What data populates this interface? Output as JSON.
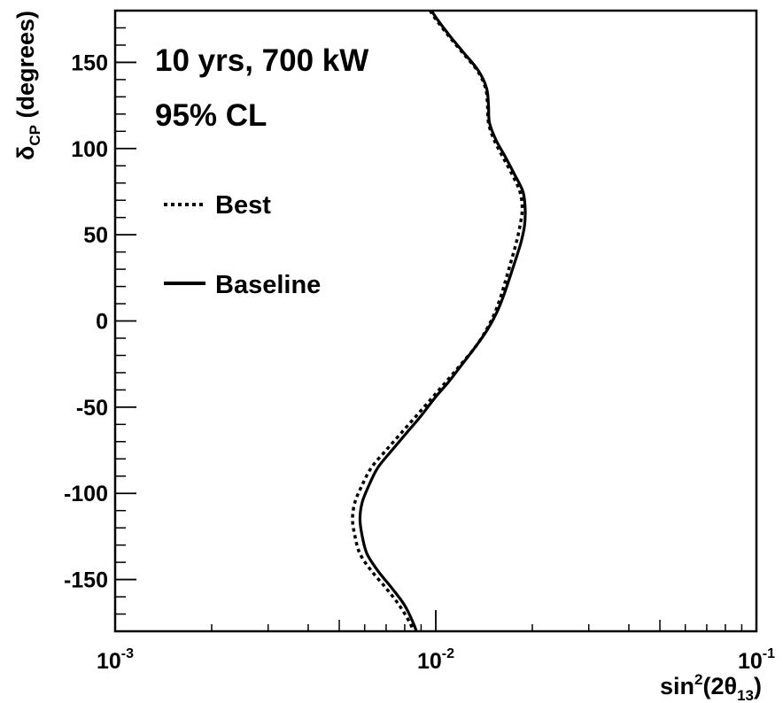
{
  "chart_data": {
    "type": "line",
    "title": "",
    "annotations": [
      "10 yrs, 700 kW",
      "95% CL"
    ],
    "xlabel": {
      "base": "sin",
      "sup": "2",
      "mid": "(2θ",
      "sub": "13",
      "end": ")"
    },
    "ylabel": {
      "base": "δ",
      "sub": "CP",
      "end": " (degrees)"
    },
    "xscale": "log",
    "xlim": [
      0.001,
      0.1
    ],
    "ylim": [
      -180,
      180
    ],
    "grid": false,
    "legend_position": "top-left",
    "x_ticks": [
      {
        "value": 0.001,
        "base": "10",
        "exp": "-3"
      },
      {
        "value": 0.01,
        "base": "10",
        "exp": "-2"
      },
      {
        "value": 0.1,
        "base": "10",
        "exp": "-1"
      }
    ],
    "y_ticks": [
      {
        "value": 150,
        "label": "150"
      },
      {
        "value": 100,
        "label": "100"
      },
      {
        "value": 50,
        "label": "50"
      },
      {
        "value": 0,
        "label": "0"
      },
      {
        "value": -50,
        "label": "-50"
      },
      {
        "value": -100,
        "label": "-100"
      },
      {
        "value": -150,
        "label": "-150"
      }
    ],
    "series": [
      {
        "name": "Best",
        "style": "dotted",
        "color": "#000000",
        "points": [
          [
            0.0096,
            180
          ],
          [
            0.01,
            175
          ],
          [
            0.011,
            165
          ],
          [
            0.0122,
            155
          ],
          [
            0.0135,
            145
          ],
          [
            0.0143,
            135
          ],
          [
            0.0145,
            125
          ],
          [
            0.0146,
            115
          ],
          [
            0.0152,
            105
          ],
          [
            0.0162,
            95
          ],
          [
            0.0173,
            85
          ],
          [
            0.0183,
            75
          ],
          [
            0.0186,
            65
          ],
          [
            0.0183,
            55
          ],
          [
            0.0178,
            45
          ],
          [
            0.0172,
            35
          ],
          [
            0.0166,
            25
          ],
          [
            0.016,
            15
          ],
          [
            0.0153,
            5
          ],
          [
            0.0144,
            -5
          ],
          [
            0.0133,
            -15
          ],
          [
            0.012,
            -25
          ],
          [
            0.0108,
            -35
          ],
          [
            0.0097,
            -45
          ],
          [
            0.0087,
            -55
          ],
          [
            0.0078,
            -65
          ],
          [
            0.007,
            -75
          ],
          [
            0.0063,
            -85
          ],
          [
            0.0059,
            -95
          ],
          [
            0.0056,
            -105
          ],
          [
            0.0055,
            -115
          ],
          [
            0.0056,
            -125
          ],
          [
            0.0058,
            -135
          ],
          [
            0.0063,
            -145
          ],
          [
            0.007,
            -155
          ],
          [
            0.0077,
            -165
          ],
          [
            0.0083,
            -175
          ],
          [
            0.0085,
            -180
          ]
        ]
      },
      {
        "name": "Baseline",
        "style": "solid",
        "color": "#000000",
        "points": [
          [
            0.0097,
            180
          ],
          [
            0.0101,
            175
          ],
          [
            0.0111,
            165
          ],
          [
            0.0123,
            155
          ],
          [
            0.0136,
            145
          ],
          [
            0.0144,
            135
          ],
          [
            0.0146,
            125
          ],
          [
            0.0147,
            115
          ],
          [
            0.0154,
            105
          ],
          [
            0.0165,
            95
          ],
          [
            0.0176,
            85
          ],
          [
            0.0187,
            75
          ],
          [
            0.019,
            65
          ],
          [
            0.0189,
            55
          ],
          [
            0.0184,
            45
          ],
          [
            0.0177,
            35
          ],
          [
            0.017,
            25
          ],
          [
            0.0163,
            15
          ],
          [
            0.0155,
            5
          ],
          [
            0.0145,
            -5
          ],
          [
            0.0133,
            -15
          ],
          [
            0.0121,
            -25
          ],
          [
            0.011,
            -35
          ],
          [
            0.0099,
            -45
          ],
          [
            0.009,
            -55
          ],
          [
            0.0081,
            -65
          ],
          [
            0.0073,
            -75
          ],
          [
            0.0066,
            -85
          ],
          [
            0.0062,
            -95
          ],
          [
            0.0059,
            -105
          ],
          [
            0.0058,
            -115
          ],
          [
            0.0059,
            -125
          ],
          [
            0.0061,
            -135
          ],
          [
            0.0066,
            -145
          ],
          [
            0.0073,
            -155
          ],
          [
            0.008,
            -165
          ],
          [
            0.0085,
            -175
          ],
          [
            0.0087,
            -180
          ]
        ]
      }
    ]
  }
}
